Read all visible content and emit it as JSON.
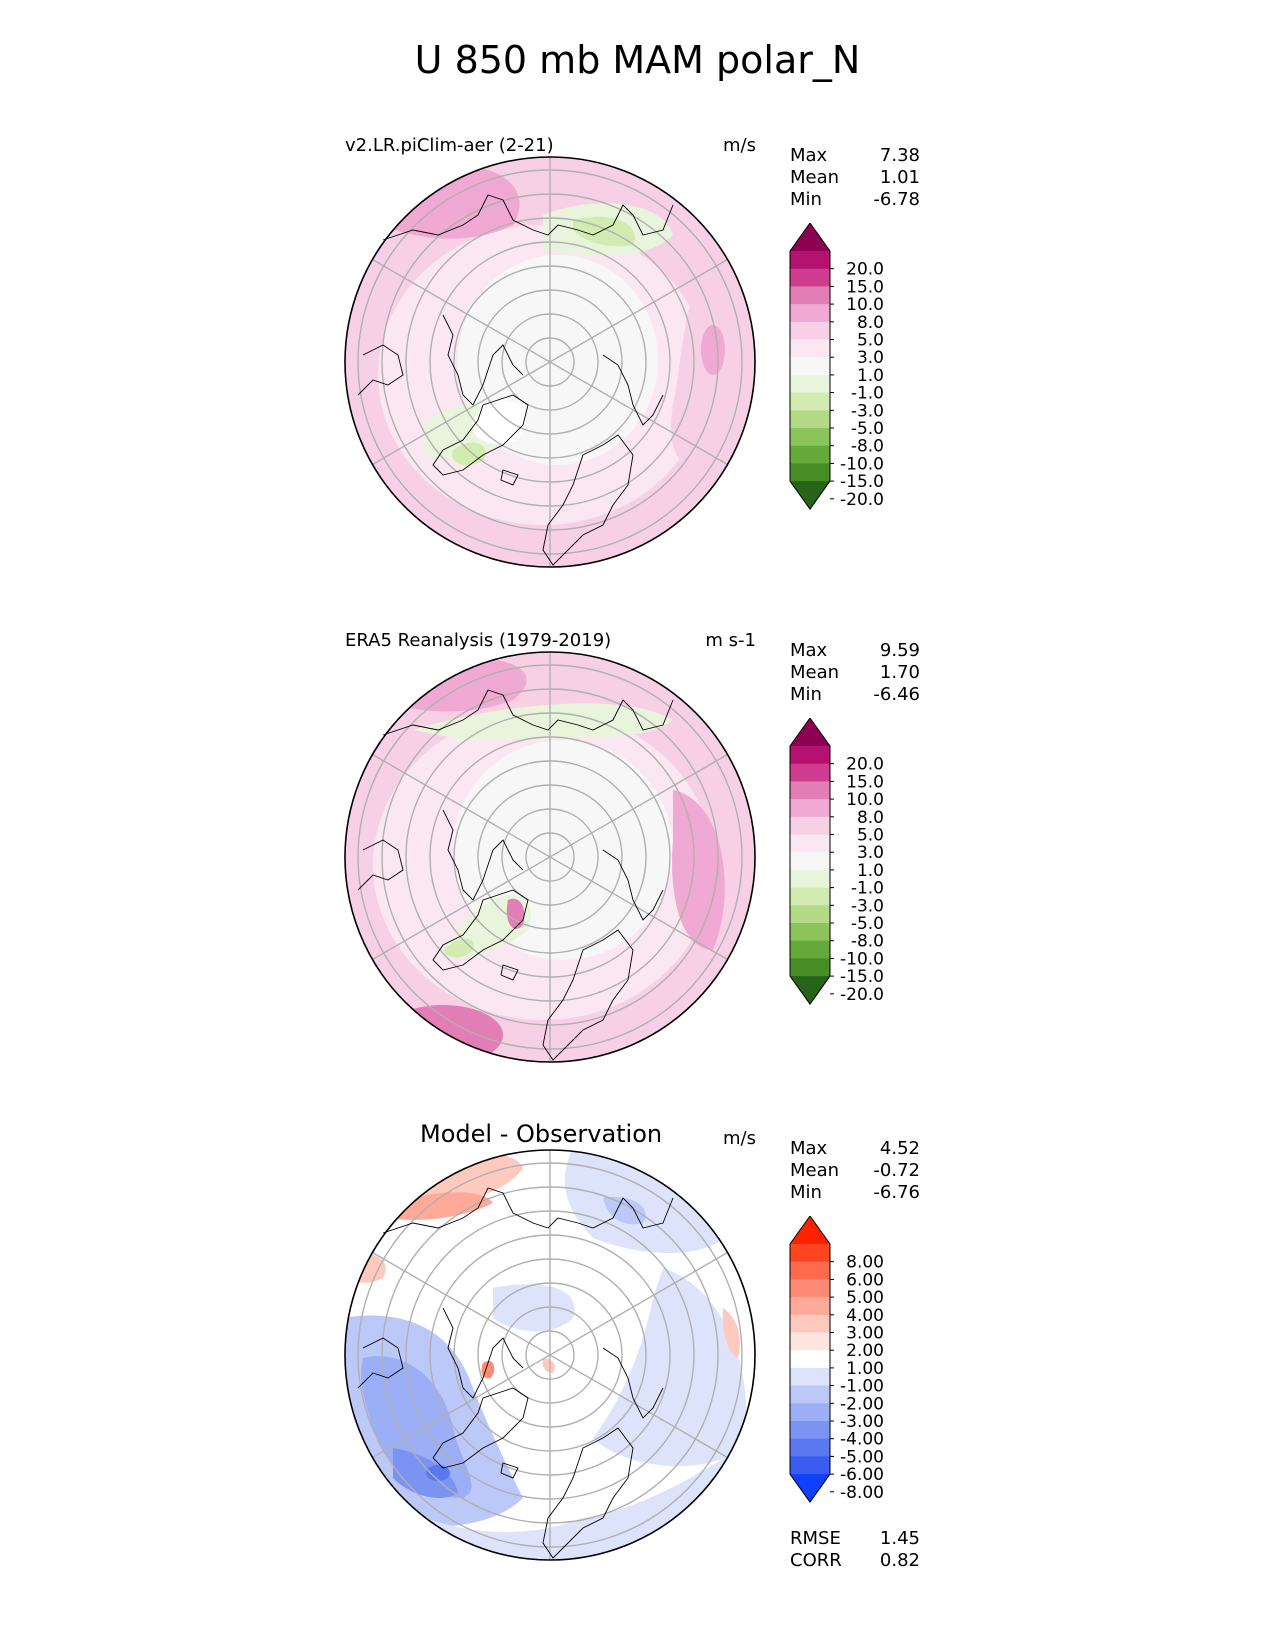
{
  "title": "U 850 mb MAM polar_N",
  "panels": [
    {
      "id": "model",
      "title": "v2.LR.piClim-aer (2-21)",
      "title_style": "left",
      "units": "m/s",
      "stats": [
        {
          "label": "Max",
          "value": "7.38"
        },
        {
          "label": "Mean",
          "value": "1.01"
        },
        {
          "label": "Min",
          "value": "-6.78"
        }
      ],
      "colorbar": {
        "labels": [
          "20.0",
          "15.0",
          "10.0",
          "8.0",
          "5.0",
          "3.0",
          "1.0",
          "-1.0",
          "-3.0",
          "-5.0",
          "-8.0",
          "-10.0",
          "-15.0",
          "-20.0"
        ],
        "colors": [
          "#8e0152",
          "#b3126e",
          "#cf3c8f",
          "#e27db6",
          "#efa9d2",
          "#f7d0e6",
          "#fbe7f1",
          "#f7f7f7",
          "#e9f4dc",
          "#d2ebb0",
          "#b3db86",
          "#8cc45c",
          "#65a93a",
          "#468e23",
          "#276419"
        ]
      }
    },
    {
      "id": "obs",
      "title": "ERA5 Reanalysis (1979-2019)",
      "title_style": "left",
      "units": "m s-1",
      "stats": [
        {
          "label": "Max",
          "value": "9.59"
        },
        {
          "label": "Mean",
          "value": "1.70"
        },
        {
          "label": "Min",
          "value": "-6.46"
        }
      ],
      "colorbar": {
        "labels": [
          "20.0",
          "15.0",
          "10.0",
          "8.0",
          "5.0",
          "3.0",
          "1.0",
          "-1.0",
          "-3.0",
          "-5.0",
          "-8.0",
          "-10.0",
          "-15.0",
          "-20.0"
        ],
        "colors": [
          "#8e0152",
          "#b3126e",
          "#cf3c8f",
          "#e27db6",
          "#efa9d2",
          "#f7d0e6",
          "#fbe7f1",
          "#f7f7f7",
          "#e9f4dc",
          "#d2ebb0",
          "#b3db86",
          "#8cc45c",
          "#65a93a",
          "#468e23",
          "#276419"
        ]
      }
    },
    {
      "id": "diff",
      "title": "Model - Observation",
      "title_style": "center",
      "units": "m/s",
      "stats": [
        {
          "label": "Max",
          "value": "4.52"
        },
        {
          "label": "Mean",
          "value": "-0.72"
        },
        {
          "label": "Min",
          "value": "-6.76"
        }
      ],
      "colorbar": {
        "labels": [
          "8.00",
          "6.00",
          "5.00",
          "4.00",
          "3.00",
          "2.00",
          "1.00",
          "-1.00",
          "-2.00",
          "-3.00",
          "-4.00",
          "-5.00",
          "-6.00",
          "-8.00"
        ],
        "colors": [
          "#ff2200",
          "#ff4422",
          "#ff6a4d",
          "#ff8a75",
          "#ffaa99",
          "#ffcabe",
          "#ffe5df",
          "#ffffff",
          "#dde3fb",
          "#bcc8f8",
          "#9caef6",
          "#7b93f3",
          "#5a78f0",
          "#3a5df0",
          "#1040ff"
        ]
      },
      "bottom_stats": [
        {
          "label": "RMSE",
          "value": "1.45"
        },
        {
          "label": "CORR",
          "value": "0.82"
        }
      ]
    }
  ],
  "colors": {
    "graticule": "#b0b0b0",
    "coastline": "#000000"
  }
}
